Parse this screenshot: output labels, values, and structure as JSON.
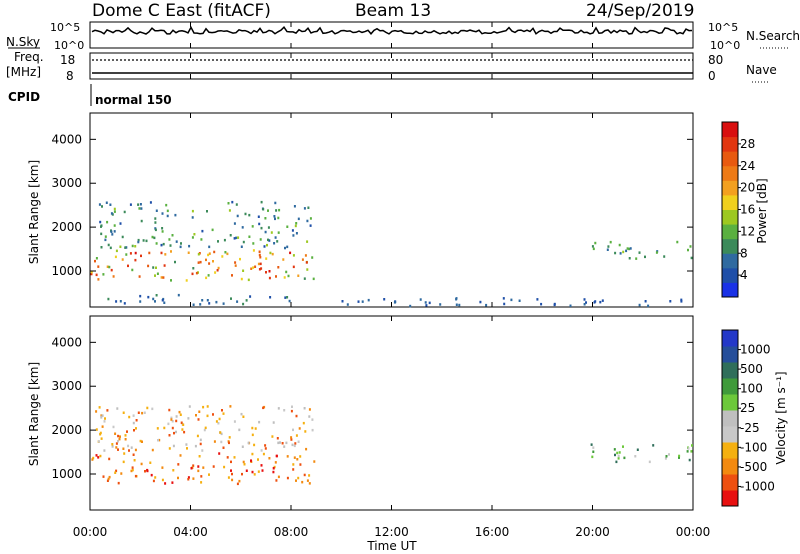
{
  "header": {
    "site": "Dome C East (fitACF)",
    "beam": "Beam 13",
    "date": "24/Sep/2019"
  },
  "top_panels": {
    "nsky_label": "N.Sky",
    "nsky_ticks": [
      "10^5",
      "10^0"
    ],
    "nsearch_label": "N.Search",
    "nsearch_ticks": [
      "10^5",
      "10^0"
    ],
    "freq_label_1": "Freq.",
    "freq_label_2": "[MHz]",
    "freq_ticks": [
      "18",
      "8"
    ],
    "nave_label": "Nave",
    "nave_ticks": [
      "80",
      "0"
    ],
    "cpid_label": "CPID",
    "cpid_value": "normal 150"
  },
  "colors": {
    "power": [
      "#1a32e6",
      "#1f4fa8",
      "#2f6aa0",
      "#3b8a5a",
      "#5ab040",
      "#9dc820",
      "#f0d01e",
      "#f3a020",
      "#ee7a16",
      "#e85a10",
      "#e23610",
      "#d90f0f"
    ],
    "velocity": [
      "#e81010",
      "#ee5010",
      "#f38a10",
      "#f5b010",
      "#c8c8c8",
      "#bfbfbf",
      "#6cc83a",
      "#3f9a3a",
      "#2f6e5a",
      "#254e9a",
      "#2338c8"
    ]
  },
  "chart_data": [
    {
      "type": "heatmap",
      "name": "power",
      "xlabel": "",
      "ylabel": "Slant Range [km]",
      "yticks": [
        "4000",
        "3000",
        "2000",
        "1000"
      ],
      "ylim": [
        180,
        4600
      ],
      "colorbar_label": "Power [dB]",
      "colorbar_ticks": [
        "28",
        "24",
        "20",
        "16",
        "12",
        "8",
        "4"
      ],
      "colorbar_range": [
        0,
        32
      ],
      "regions": [
        {
          "t0": 0.0,
          "t1": 8.9,
          "r0": 800,
          "r1": 1500,
          "vmin": 10,
          "vmax": 30
        },
        {
          "t0": 0.2,
          "t1": 8.9,
          "r0": 1550,
          "r1": 2600,
          "vmin": 4,
          "vmax": 14
        },
        {
          "t0": 0.5,
          "t1": 8.5,
          "r0": 250,
          "r1": 500,
          "vmin": 3,
          "vmax": 10
        },
        {
          "t0": 9.5,
          "t1": 24.0,
          "r0": 230,
          "r1": 420,
          "vmin": 3,
          "vmax": 8
        },
        {
          "t0": 19.8,
          "t1": 24.0,
          "r0": 1300,
          "r1": 1700,
          "vmin": 6,
          "vmax": 14
        }
      ]
    },
    {
      "type": "heatmap",
      "name": "velocity",
      "xlabel": "Time UT",
      "ylabel": "Slant Range [km]",
      "xticks": [
        "00:00",
        "04:00",
        "08:00",
        "12:00",
        "16:00",
        "20:00",
        "00:00"
      ],
      "xlim": [
        0,
        24
      ],
      "yticks": [
        "4000",
        "3000",
        "2000",
        "1000"
      ],
      "ylim": [
        180,
        4600
      ],
      "colorbar_label": "Velocity [m s⁻¹]",
      "colorbar_ticks": [
        "1000",
        "500",
        "100",
        "25",
        "-25",
        "-100",
        "-500",
        "-1000"
      ],
      "regions": [
        {
          "t0": 0.0,
          "t1": 8.9,
          "r0": 800,
          "r1": 1500,
          "v": "negative"
        },
        {
          "t0": 0.2,
          "t1": 8.9,
          "r0": 1550,
          "r1": 2600,
          "v": "near-zero"
        },
        {
          "t0": 19.8,
          "t1": 24.0,
          "r0": 1300,
          "r1": 1700,
          "v": "positive"
        }
      ]
    }
  ]
}
